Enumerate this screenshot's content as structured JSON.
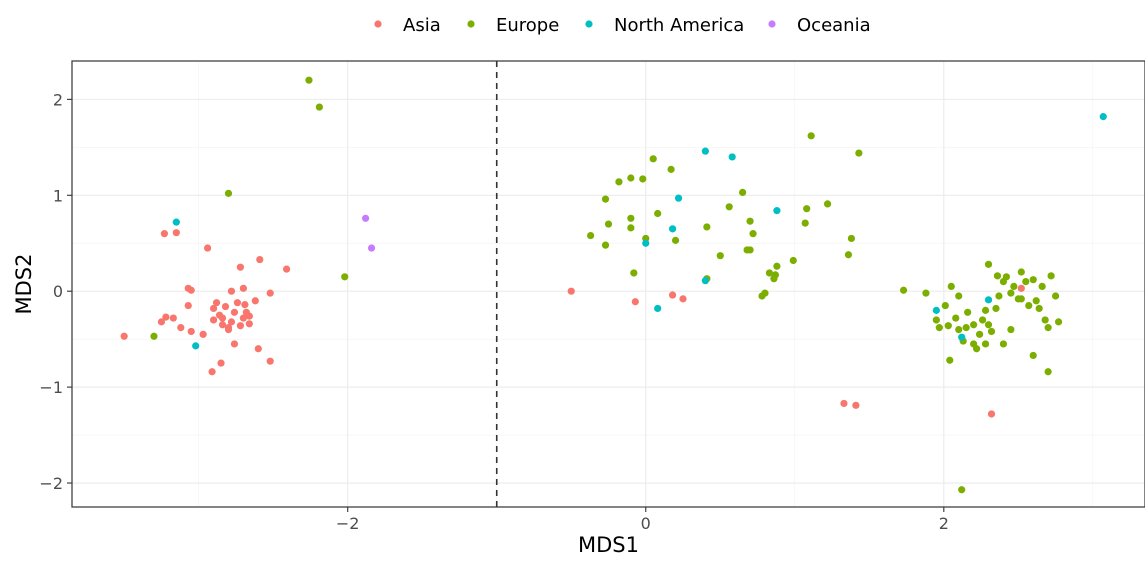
{
  "chart_data": {
    "type": "scatter",
    "title": "",
    "xlabel": "MDS1",
    "ylabel": "MDS2",
    "xlim": [
      -3.85,
      3.35
    ],
    "ylim": [
      -2.25,
      2.4
    ],
    "x_ticks": [
      -2,
      0,
      2
    ],
    "x_tick_labels": [
      "−2",
      "0",
      "2"
    ],
    "y_ticks": [
      -2,
      -1,
      0,
      1,
      2
    ],
    "y_tick_labels": [
      "−2",
      "−1",
      "0",
      "1",
      "2"
    ],
    "grid": true,
    "legend_position": "top",
    "vline": {
      "x": -1,
      "style": "dashed"
    },
    "series": [
      {
        "name": "Asia",
        "color": "#F8766D",
        "points": [
          [
            -3.5,
            -0.47
          ],
          [
            -3.25,
            -0.32
          ],
          [
            -3.22,
            -0.27
          ],
          [
            -3.17,
            -0.28
          ],
          [
            -3.12,
            -0.38
          ],
          [
            -3.05,
            -0.42
          ],
          [
            -2.97,
            -0.45
          ],
          [
            -3.23,
            0.6
          ],
          [
            -3.15,
            0.61
          ],
          [
            -2.94,
            0.45
          ],
          [
            -3.07,
            0.03
          ],
          [
            -3.05,
            0.01
          ],
          [
            -3.07,
            -0.15
          ],
          [
            -2.9,
            -0.18
          ],
          [
            -2.88,
            -0.12
          ],
          [
            -2.86,
            -0.25
          ],
          [
            -2.84,
            -0.28
          ],
          [
            -2.82,
            -0.16
          ],
          [
            -2.8,
            -0.4
          ],
          [
            -2.78,
            -0.32
          ],
          [
            -2.76,
            -0.22
          ],
          [
            -2.74,
            -0.12
          ],
          [
            -2.72,
            -0.36
          ],
          [
            -2.7,
            -0.28
          ],
          [
            -2.69,
            -0.14
          ],
          [
            -2.68,
            -0.22
          ],
          [
            -2.66,
            -0.34
          ],
          [
            -2.85,
            -0.75
          ],
          [
            -2.91,
            -0.84
          ],
          [
            -2.76,
            -0.55
          ],
          [
            -2.6,
            -0.6
          ],
          [
            -2.52,
            -0.73
          ],
          [
            -2.78,
            0.0
          ],
          [
            -2.7,
            0.03
          ],
          [
            -2.72,
            0.25
          ],
          [
            -2.59,
            0.33
          ],
          [
            -2.52,
            -0.02
          ],
          [
            -2.41,
            0.23
          ],
          [
            -2.8,
            -0.38
          ],
          [
            -2.9,
            -0.3
          ],
          [
            -2.84,
            -0.35
          ],
          [
            -2.66,
            -0.26
          ],
          [
            -2.62,
            -0.1
          ],
          [
            -0.5,
            0.0
          ],
          [
            -0.07,
            -0.11
          ],
          [
            0.18,
            -0.04
          ],
          [
            0.25,
            -0.08
          ],
          [
            1.33,
            -1.17
          ],
          [
            1.41,
            -1.19
          ],
          [
            2.32,
            -1.28
          ],
          [
            2.52,
            0.03
          ]
        ]
      },
      {
        "name": "Europe",
        "color": "#7CAE00",
        "points": [
          [
            -2.26,
            2.2
          ],
          [
            -2.19,
            1.92
          ],
          [
            -2.8,
            1.02
          ],
          [
            -2.02,
            0.15
          ],
          [
            -3.3,
            -0.47
          ],
          [
            -0.37,
            0.58
          ],
          [
            -0.27,
            0.96
          ],
          [
            -0.25,
            0.7
          ],
          [
            -0.27,
            0.48
          ],
          [
            -0.18,
            1.14
          ],
          [
            -0.1,
            1.18
          ],
          [
            -0.1,
            0.76
          ],
          [
            -0.1,
            0.66
          ],
          [
            -0.08,
            0.19
          ],
          [
            -0.02,
            1.17
          ],
          [
            0.05,
            1.38
          ],
          [
            0.08,
            0.81
          ],
          [
            0.17,
            1.27
          ],
          [
            0.2,
            0.53
          ],
          [
            0.0,
            0.55
          ],
          [
            0.41,
            0.67
          ],
          [
            0.41,
            0.13
          ],
          [
            0.5,
            0.37
          ],
          [
            0.56,
            0.88
          ],
          [
            0.65,
            1.03
          ],
          [
            0.68,
            0.43
          ],
          [
            0.7,
            0.73
          ],
          [
            0.72,
            0.6
          ],
          [
            0.7,
            0.43
          ],
          [
            0.8,
            -0.02
          ],
          [
            0.78,
            -0.05
          ],
          [
            0.83,
            0.19
          ],
          [
            0.87,
            0.17
          ],
          [
            0.88,
            0.26
          ],
          [
            0.86,
            0.13
          ],
          [
            0.99,
            0.32
          ],
          [
            1.08,
            0.86
          ],
          [
            1.07,
            0.71
          ],
          [
            1.11,
            1.62
          ],
          [
            1.22,
            0.91
          ],
          [
            1.36,
            0.38
          ],
          [
            1.38,
            0.55
          ],
          [
            1.43,
            1.44
          ],
          [
            1.73,
            0.01
          ],
          [
            1.88,
            -0.02
          ],
          [
            1.97,
            -0.38
          ],
          [
            2.01,
            -0.15
          ],
          [
            2.05,
            0.05
          ],
          [
            2.03,
            -0.36
          ],
          [
            2.08,
            -0.28
          ],
          [
            2.1,
            -0.4
          ],
          [
            2.13,
            -0.52
          ],
          [
            2.16,
            -0.22
          ],
          [
            2.2,
            -0.35
          ],
          [
            2.24,
            -0.45
          ],
          [
            2.28,
            -0.55
          ],
          [
            2.3,
            -0.35
          ],
          [
            2.32,
            -0.42
          ],
          [
            2.35,
            -0.18
          ],
          [
            2.37,
            -0.05
          ],
          [
            2.4,
            0.1
          ],
          [
            2.42,
            0.15
          ],
          [
            2.45,
            -0.02
          ],
          [
            2.47,
            0.05
          ],
          [
            2.5,
            -0.08
          ],
          [
            2.52,
            0.2
          ],
          [
            2.55,
            0.1
          ],
          [
            2.57,
            -0.15
          ],
          [
            2.6,
            0.12
          ],
          [
            2.62,
            -0.1
          ],
          [
            2.64,
            -0.18
          ],
          [
            2.66,
            0.05
          ],
          [
            2.68,
            -0.3
          ],
          [
            2.7,
            -0.38
          ],
          [
            2.72,
            0.16
          ],
          [
            2.75,
            -0.05
          ],
          [
            2.77,
            -0.32
          ],
          [
            2.2,
            -0.55
          ],
          [
            2.26,
            -0.3
          ],
          [
            2.3,
            0.28
          ],
          [
            2.1,
            -0.05
          ],
          [
            2.15,
            -0.38
          ],
          [
            2.04,
            -0.72
          ],
          [
            2.4,
            -0.55
          ],
          [
            2.45,
            -0.4
          ],
          [
            2.52,
            -0.08
          ],
          [
            2.6,
            -0.67
          ],
          [
            2.7,
            -0.84
          ],
          [
            2.12,
            -2.07
          ],
          [
            2.36,
            0.16
          ],
          [
            2.22,
            -0.6
          ],
          [
            1.95,
            -0.3
          ],
          [
            2.28,
            -0.2
          ]
        ]
      },
      {
        "name": "North America",
        "color": "#00BFC4",
        "points": [
          [
            -3.15,
            0.72
          ],
          [
            -3.02,
            -0.57
          ],
          [
            0.0,
            0.5
          ],
          [
            0.08,
            -0.18
          ],
          [
            0.18,
            0.65
          ],
          [
            0.22,
            0.97
          ],
          [
            0.4,
            1.46
          ],
          [
            0.4,
            0.11
          ],
          [
            0.58,
            1.4
          ],
          [
            0.88,
            0.84
          ],
          [
            1.95,
            -0.2
          ],
          [
            2.12,
            -0.48
          ],
          [
            2.3,
            -0.09
          ],
          [
            3.07,
            1.82
          ]
        ]
      },
      {
        "name": "Oceania",
        "color": "#C77CFF",
        "points": [
          [
            -1.88,
            0.76
          ],
          [
            -1.84,
            0.45
          ]
        ]
      }
    ]
  }
}
